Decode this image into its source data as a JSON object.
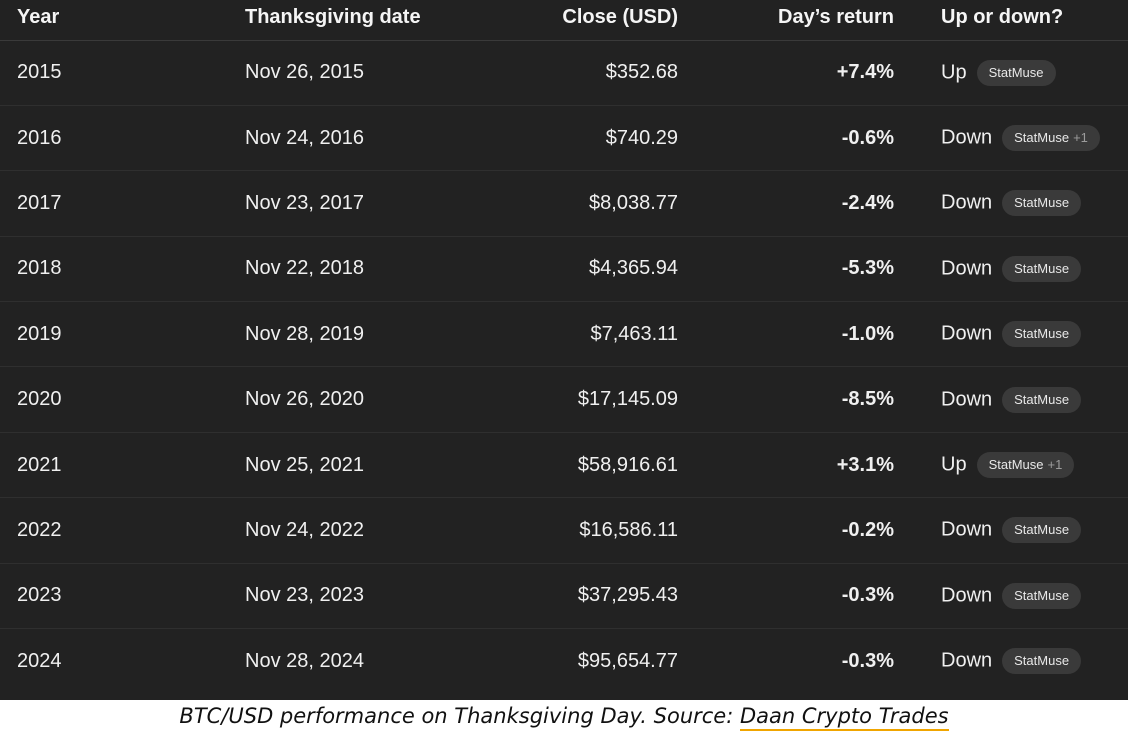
{
  "table": {
    "headers": {
      "year": "Year",
      "date": "Thanksgiving date",
      "close": "Close (USD)",
      "return": "Day’s return",
      "direction": "Up or down?"
    },
    "rows": [
      {
        "year": "2015",
        "date": "Nov 26, 2015",
        "close": "$352.68",
        "return": "+7.4%",
        "direction": "Up",
        "source": "StatMuse",
        "extra": ""
      },
      {
        "year": "2016",
        "date": "Nov 24, 2016",
        "close": "$740.29",
        "return": "-0.6%",
        "direction": "Down",
        "source": "StatMuse",
        "extra": "+1"
      },
      {
        "year": "2017",
        "date": "Nov 23, 2017",
        "close": "$8,038.77",
        "return": "-2.4%",
        "direction": "Down",
        "source": "StatMuse",
        "extra": ""
      },
      {
        "year": "2018",
        "date": "Nov 22, 2018",
        "close": "$4,365.94",
        "return": "-5.3%",
        "direction": "Down",
        "source": "StatMuse",
        "extra": ""
      },
      {
        "year": "2019",
        "date": "Nov 28, 2019",
        "close": "$7,463.11",
        "return": "-1.0%",
        "direction": "Down",
        "source": "StatMuse",
        "extra": ""
      },
      {
        "year": "2020",
        "date": "Nov 26, 2020",
        "close": "$17,145.09",
        "return": "-8.5%",
        "direction": "Down",
        "source": "StatMuse",
        "extra": ""
      },
      {
        "year": "2021",
        "date": "Nov 25, 2021",
        "close": "$58,916.61",
        "return": "+3.1%",
        "direction": "Up",
        "source": "StatMuse",
        "extra": "+1"
      },
      {
        "year": "2022",
        "date": "Nov 24, 2022",
        "close": "$16,586.11",
        "return": "-0.2%",
        "direction": "Down",
        "source": "StatMuse",
        "extra": ""
      },
      {
        "year": "2023",
        "date": "Nov 23, 2023",
        "close": "$37,295.43",
        "return": "-0.3%",
        "direction": "Down",
        "source": "StatMuse",
        "extra": ""
      },
      {
        "year": "2024",
        "date": "Nov 28, 2024",
        "close": "$95,654.77",
        "return": "-0.3%",
        "direction": "Down",
        "source": "StatMuse",
        "extra": ""
      }
    ]
  },
  "caption": {
    "text": "BTC/USD performance on Thanksgiving Day. Source: ",
    "link_text": "Daan Crypto Trades"
  },
  "colors": {
    "panel_background": "#222222",
    "badge_background": "#3a3a3a",
    "link_underline": "#f0a500"
  }
}
